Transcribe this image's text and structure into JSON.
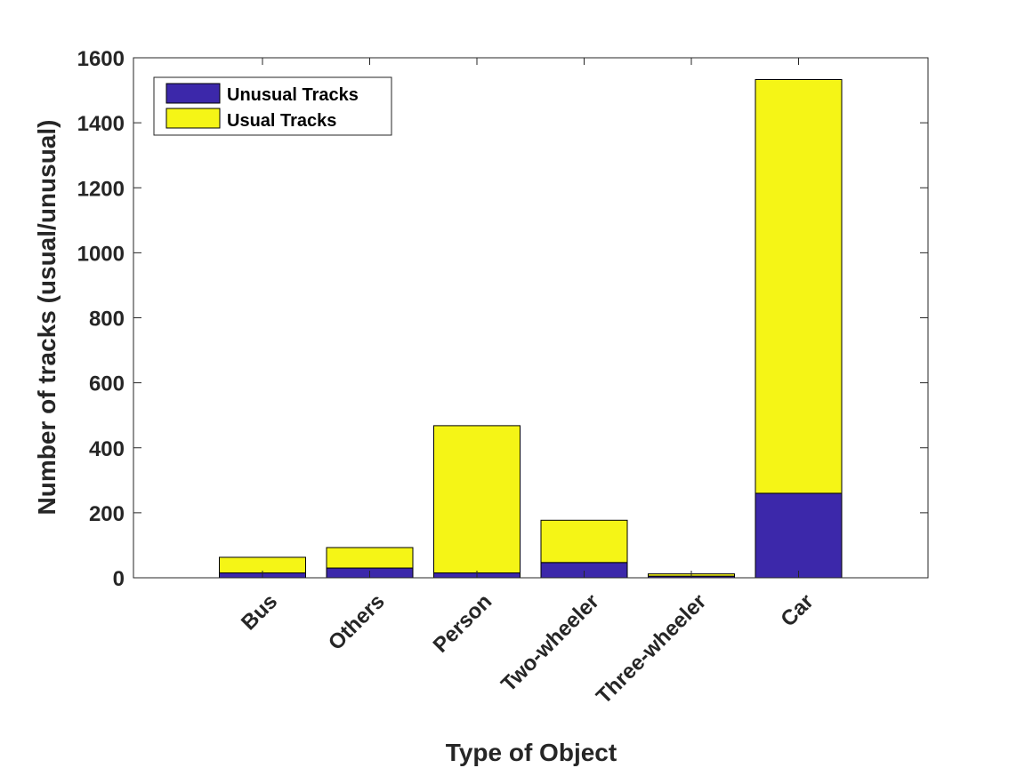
{
  "chart_data": {
    "type": "bar",
    "stacked": true,
    "categories": [
      "Bus",
      "Others",
      "Person",
      "Two-wheeler",
      "Three-wheeler",
      "Car"
    ],
    "series": [
      {
        "name": "Unusual Tracks",
        "values": [
          15,
          30,
          15,
          47,
          5,
          260
        ],
        "color": "#3c28aa"
      },
      {
        "name": "Usual Tracks",
        "values": [
          48,
          63,
          453,
          130,
          7,
          1273
        ],
        "color": "#f5f516"
      }
    ],
    "xlabel": "Type of Object",
    "ylabel": "Number of tracks (usual/unusual)",
    "ylim": [
      0,
      1600
    ],
    "yticks": [
      0,
      200,
      400,
      600,
      800,
      1000,
      1200,
      1400,
      1600
    ],
    "grid": false,
    "legend_position": "top-left"
  }
}
